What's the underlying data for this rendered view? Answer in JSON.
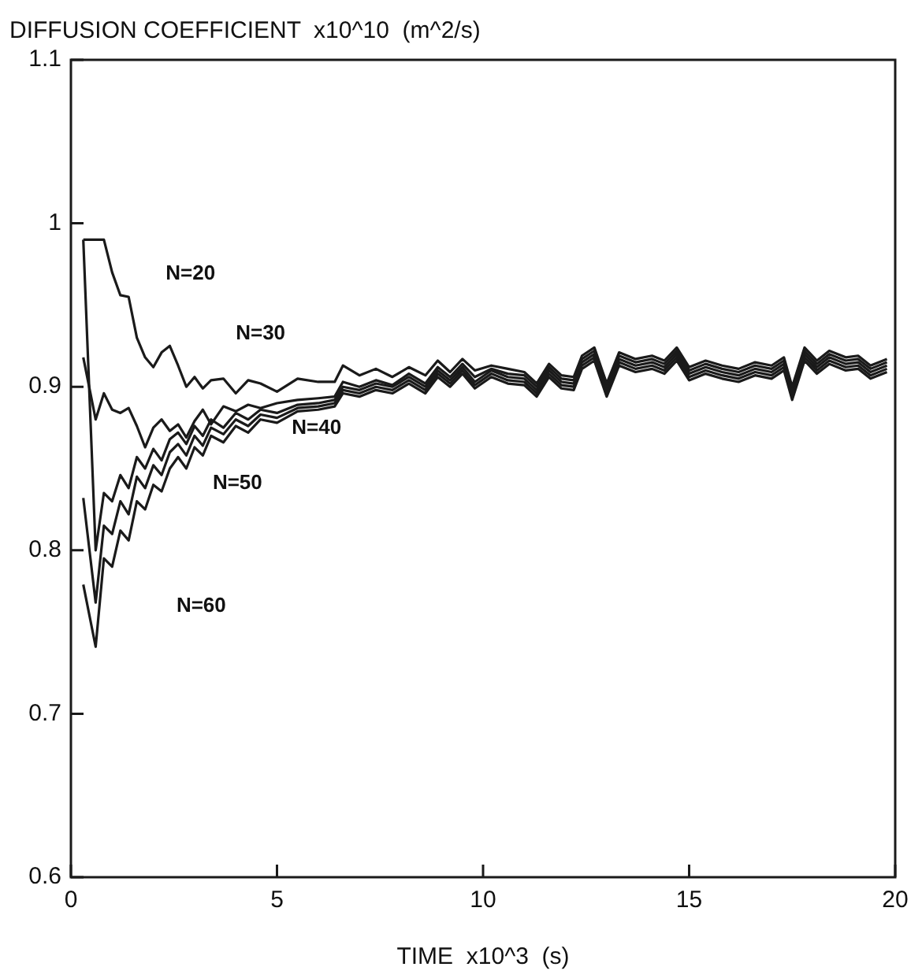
{
  "chart_data": {
    "type": "line",
    "ylabel": "DIFFUSION COEFFICIENT  x10^10  (m^2/s)",
    "xlabel": "TIME  x10^3  (s)",
    "x": [
      0.3,
      0.6,
      0.8,
      1.0,
      1.2,
      1.4,
      1.6,
      1.8,
      2.0,
      2.2,
      2.4,
      2.6,
      2.8,
      3.0,
      3.2,
      3.4,
      3.7,
      4.0,
      4.3,
      4.6,
      5.0,
      5.5,
      6.0,
      6.4,
      6.6,
      7.0,
      7.4,
      7.8,
      8.2,
      8.6,
      8.9,
      9.2,
      9.5,
      9.8,
      10.2,
      10.6,
      11,
      11.3,
      11.6,
      11.9,
      12.2,
      12.4,
      12.7,
      13.0,
      13.3,
      13.7,
      14.1,
      14.4,
      14.7,
      15.0,
      15.4,
      15.8,
      16.2,
      16.6,
      17.0,
      17.3,
      17.5,
      17.8,
      18.1,
      18.4,
      18.8,
      19.1,
      19.4,
      19.8
    ],
    "series": [
      {
        "color": "#1a1a1a",
        "values": [
          0.99,
          0.99,
          0.99,
          0.97,
          0.956,
          0.955,
          0.93,
          0.918,
          0.912,
          0.921,
          0.925,
          0.913,
          0.9,
          0.906,
          0.899,
          0.904,
          0.905,
          0.896,
          0.904,
          0.902,
          0.897,
          0.905,
          0.903,
          0.903,
          0.913,
          0.907,
          0.911,
          0.906,
          0.912,
          0.907,
          0.916,
          0.909,
          0.917,
          0.91,
          0.913,
          0.911,
          0.909,
          0.902,
          0.914,
          0.907,
          0.906,
          0.919,
          0.924,
          0.902,
          0.921,
          0.917,
          0.919,
          0.916,
          0.924,
          0.912,
          0.916,
          0.913,
          0.911,
          0.915,
          0.913,
          0.918,
          0.9,
          0.924,
          0.916,
          0.922,
          0.918,
          0.919,
          0.913,
          0.917
        ]
      },
      {
        "color": "#1a1a1a",
        "values": [
          0.918,
          0.88,
          0.896,
          0.886,
          0.884,
          0.887,
          0.876,
          0.863,
          0.875,
          0.88,
          0.873,
          0.877,
          0.869,
          0.879,
          0.886,
          0.877,
          0.888,
          0.885,
          0.889,
          0.887,
          0.89,
          0.892,
          0.893,
          0.894,
          0.903,
          0.9,
          0.904,
          0.901,
          0.908,
          0.902,
          0.912,
          0.906,
          0.914,
          0.906,
          0.911,
          0.908,
          0.907,
          0.9,
          0.912,
          0.905,
          0.904,
          0.917,
          0.922,
          0.9,
          0.919,
          0.915,
          0.917,
          0.914,
          0.922,
          0.91,
          0.914,
          0.911,
          0.909,
          0.913,
          0.911,
          0.916,
          0.898,
          0.922,
          0.914,
          0.92,
          0.916,
          0.917,
          0.911,
          0.915
        ]
      },
      {
        "color": "#1a1a1a",
        "values": [
          0.99,
          0.8,
          0.835,
          0.83,
          0.846,
          0.838,
          0.857,
          0.85,
          0.862,
          0.855,
          0.868,
          0.872,
          0.865,
          0.876,
          0.87,
          0.88,
          0.875,
          0.884,
          0.88,
          0.886,
          0.884,
          0.889,
          0.89,
          0.892,
          0.9,
          0.898,
          0.902,
          0.9,
          0.906,
          0.9,
          0.91,
          0.904,
          0.912,
          0.903,
          0.91,
          0.906,
          0.905,
          0.898,
          0.91,
          0.903,
          0.902,
          0.915,
          0.92,
          0.898,
          0.917,
          0.913,
          0.915,
          0.912,
          0.92,
          0.908,
          0.912,
          0.909,
          0.907,
          0.911,
          0.909,
          0.914,
          0.896,
          0.92,
          0.912,
          0.918,
          0.914,
          0.915,
          0.909,
          0.913
        ]
      },
      {
        "color": "#1a1a1a",
        "values": [
          0.832,
          0.768,
          0.815,
          0.81,
          0.83,
          0.822,
          0.845,
          0.838,
          0.852,
          0.846,
          0.86,
          0.865,
          0.858,
          0.87,
          0.864,
          0.875,
          0.871,
          0.88,
          0.876,
          0.883,
          0.881,
          0.887,
          0.888,
          0.89,
          0.898,
          0.896,
          0.9,
          0.898,
          0.904,
          0.898,
          0.908,
          0.902,
          0.91,
          0.901,
          0.908,
          0.904,
          0.903,
          0.896,
          0.908,
          0.901,
          0.9,
          0.913,
          0.918,
          0.896,
          0.915,
          0.911,
          0.913,
          0.91,
          0.918,
          0.906,
          0.91,
          0.907,
          0.905,
          0.909,
          0.907,
          0.912,
          0.894,
          0.918,
          0.91,
          0.916,
          0.912,
          0.913,
          0.907,
          0.911
        ]
      },
      {
        "color": "#1a1a1a",
        "values": [
          0.779,
          0.741,
          0.795,
          0.79,
          0.812,
          0.806,
          0.83,
          0.825,
          0.84,
          0.836,
          0.85,
          0.857,
          0.85,
          0.863,
          0.858,
          0.87,
          0.866,
          0.876,
          0.872,
          0.88,
          0.878,
          0.885,
          0.886,
          0.888,
          0.896,
          0.894,
          0.898,
          0.896,
          0.902,
          0.896,
          0.906,
          0.9,
          0.908,
          0.899,
          0.906,
          0.902,
          0.901,
          0.894,
          0.906,
          0.899,
          0.898,
          0.911,
          0.916,
          0.894,
          0.913,
          0.909,
          0.911,
          0.908,
          0.916,
          0.904,
          0.908,
          0.905,
          0.903,
          0.907,
          0.905,
          0.91,
          0.892,
          0.916,
          0.908,
          0.914,
          0.91,
          0.911,
          0.905,
          0.909
        ]
      }
    ],
    "annotations": [
      "N=20",
      "N=30",
      "N=40",
      "N=50",
      "N=60"
    ],
    "xlim": [
      0,
      20
    ],
    "xticks": [
      0,
      5,
      10,
      15,
      20
    ],
    "ylim": [
      0.6,
      1.1
    ],
    "yticks": [
      0.6,
      0.7,
      0.8,
      0.9,
      1,
      1.1
    ],
    "marker": "none",
    "line_style": "solid"
  }
}
